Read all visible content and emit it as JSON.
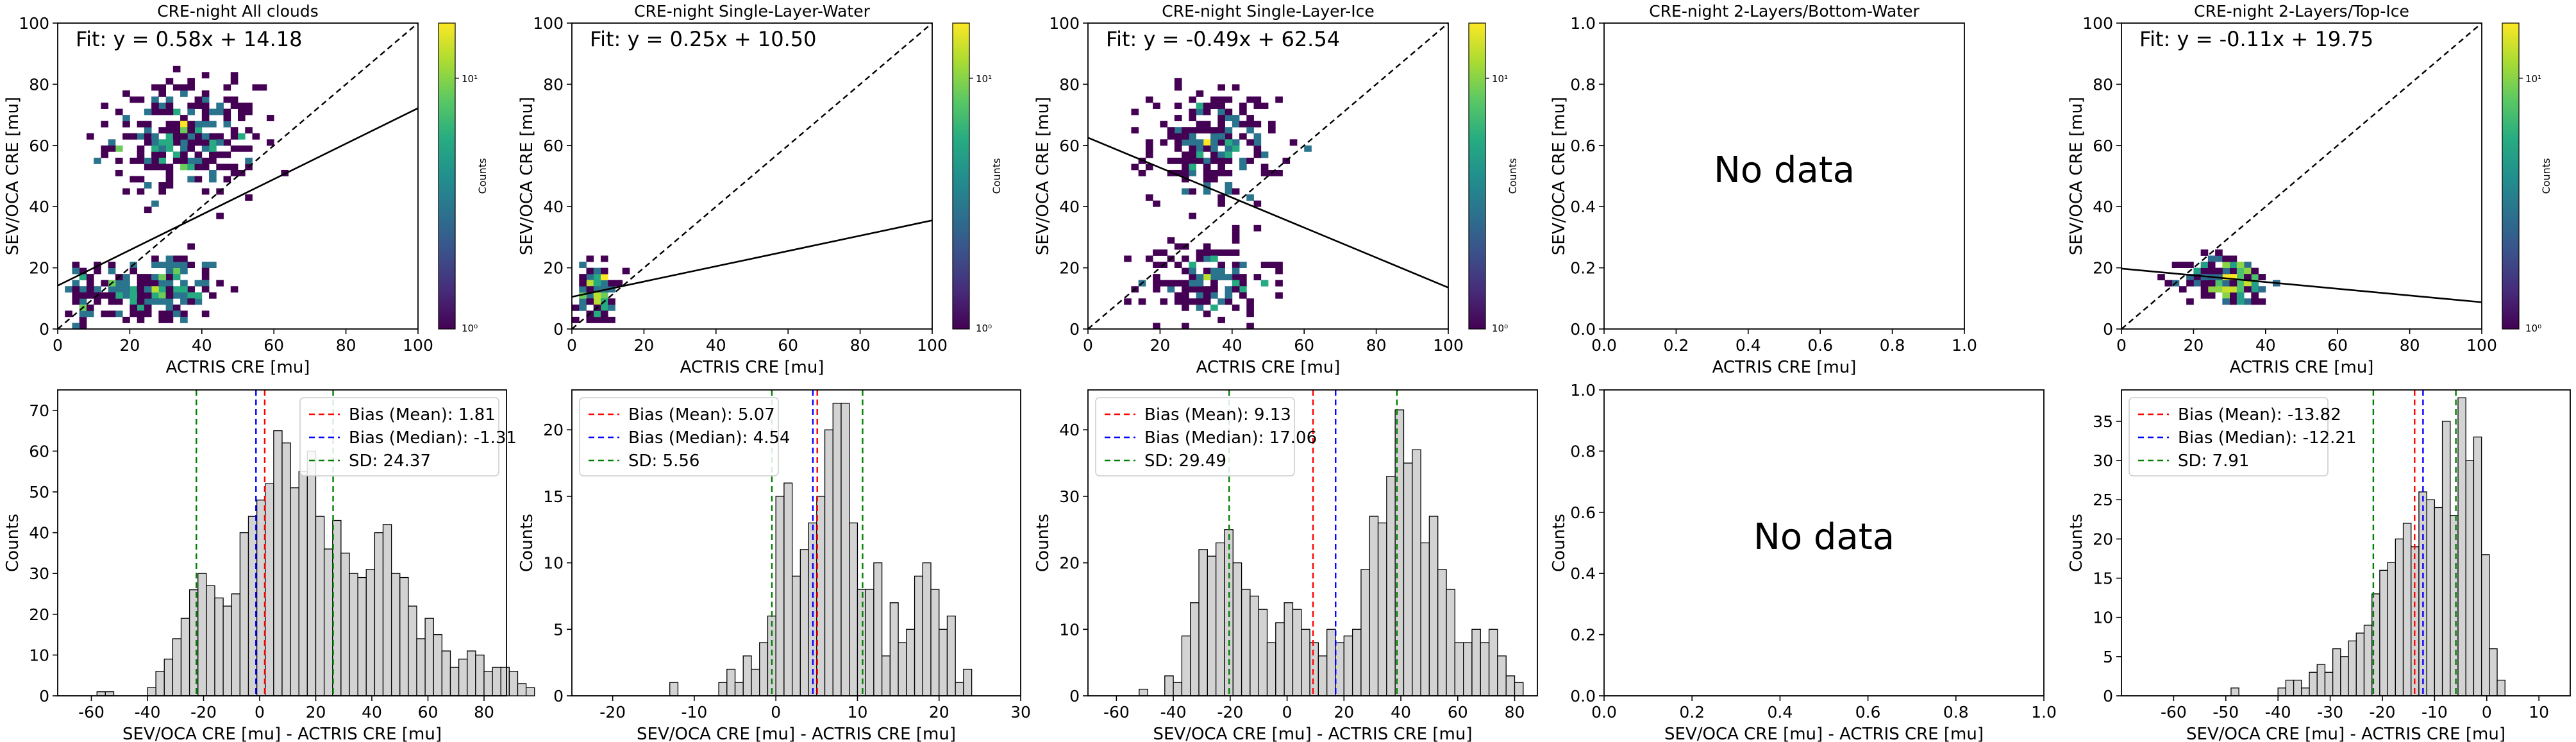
{
  "chart_data": [
    {
      "type": "heatmap",
      "title": "CRE-night All clouds",
      "xlabel": "ACTRIS CRE [mu]",
      "ylabel": "SEV/OCA CRE [mu]",
      "xlim": [
        0,
        100
      ],
      "ylim": [
        0,
        100
      ],
      "xticks": [
        "0",
        "20",
        "40",
        "60",
        "80",
        "100"
      ],
      "yticks": [
        "0",
        "20",
        "40",
        "60",
        "80",
        "100"
      ],
      "fit_text": "Fit: y = 0.58x + 14.18",
      "fit": {
        "slope": 0.58,
        "intercept": 14.18
      },
      "colorbar": {
        "label": "Counts",
        "ticks": [
          "10⁰",
          "10¹"
        ]
      },
      "clusters": [
        {
          "cx": 7,
          "cy": 10,
          "sx": 2.5,
          "sy": 7,
          "n": 40
        },
        {
          "cx": 28,
          "cy": 13,
          "sx": 9,
          "sy": 6,
          "n": 190
        },
        {
          "cx": 35,
          "cy": 62,
          "sx": 10,
          "sy": 9,
          "n": 260
        }
      ]
    },
    {
      "type": "heatmap",
      "title": "CRE-night Single-Layer-Water",
      "xlabel": "ACTRIS CRE [mu]",
      "ylabel": "SEV/OCA CRE [mu]",
      "xlim": [
        0,
        100
      ],
      "ylim": [
        0,
        100
      ],
      "xticks": [
        "0",
        "20",
        "40",
        "60",
        "80",
        "100"
      ],
      "yticks": [
        "0",
        "20",
        "40",
        "60",
        "80",
        "100"
      ],
      "fit_text": "Fit: y = 0.25x + 10.50",
      "fit": {
        "slope": 0.25,
        "intercept": 10.5
      },
      "colorbar": {
        "label": "Counts",
        "ticks": [
          "10⁰",
          "10¹"
        ]
      },
      "clusters": [
        {
          "cx": 7,
          "cy": 12,
          "sx": 2.5,
          "sy": 5,
          "n": 90
        }
      ]
    },
    {
      "type": "heatmap",
      "title": "CRE-night Single-Layer-Ice",
      "xlabel": "ACTRIS CRE [mu]",
      "ylabel": "SEV/OCA CRE [mu]",
      "xlim": [
        0,
        100
      ],
      "ylim": [
        0,
        100
      ],
      "xticks": [
        "0",
        "20",
        "40",
        "60",
        "80",
        "100"
      ],
      "yticks": [
        "0",
        "20",
        "40",
        "60",
        "80",
        "100"
      ],
      "fit_text": "Fit: y = -0.49x + 62.54",
      "fit": {
        "slope": -0.49,
        "intercept": 62.54
      },
      "colorbar": {
        "label": "Counts",
        "ticks": [
          "10⁰",
          "10¹"
        ]
      },
      "clusters": [
        {
          "cx": 35,
          "cy": 60,
          "sx": 9,
          "sy": 9,
          "n": 200
        },
        {
          "cx": 33,
          "cy": 16,
          "sx": 9,
          "sy": 7,
          "n": 140
        }
      ]
    },
    {
      "type": "heatmap",
      "title": "CRE-night 2-Layers/Bottom-Water",
      "xlabel": "ACTRIS CRE [mu]",
      "ylabel": "SEV/OCA CRE [mu]",
      "xlim": [
        0,
        1
      ],
      "ylim": [
        0,
        1
      ],
      "xticks": [
        "0.0",
        "0.2",
        "0.4",
        "0.6",
        "0.8",
        "1.0"
      ],
      "yticks": [
        "0.0",
        "0.2",
        "0.4",
        "0.6",
        "0.8",
        "1.0"
      ],
      "no_data_text": "No data"
    },
    {
      "type": "heatmap",
      "title": "CRE-night 2-Layers/Top-Ice",
      "xlabel": "ACTRIS CRE [mu]",
      "ylabel": "SEV/OCA CRE [mu]",
      "xlim": [
        0,
        100
      ],
      "ylim": [
        0,
        100
      ],
      "xticks": [
        "0",
        "20",
        "40",
        "60",
        "80",
        "100"
      ],
      "yticks": [
        "0",
        "20",
        "40",
        "60",
        "80",
        "100"
      ],
      "fit_text": "Fit: y = -0.11x + 19.75",
      "fit": {
        "slope": -0.11,
        "intercept": 19.75
      },
      "colorbar": {
        "label": "Counts",
        "ticks": [
          "10⁰",
          "10¹"
        ]
      },
      "clusters": [
        {
          "cx": 30,
          "cy": 16,
          "sx": 6,
          "sy": 4,
          "n": 170
        }
      ]
    },
    {
      "type": "bar",
      "xlabel": "SEV/OCA CRE [mu] - ACTRIS CRE [mu]",
      "ylabel": "Counts",
      "xlim": [
        -72,
        88
      ],
      "ylim": [
        0,
        75
      ],
      "xticks": [
        -60,
        -40,
        -20,
        0,
        20,
        40,
        60,
        80
      ],
      "yticks": [
        0,
        10,
        20,
        30,
        40,
        50,
        60,
        70
      ],
      "bins": {
        "start": -58,
        "width": 3,
        "values": [
          1,
          1,
          0,
          0,
          0,
          0,
          2,
          6,
          9,
          14,
          19,
          26,
          30,
          27,
          24,
          22,
          25,
          40,
          44,
          48,
          52,
          65,
          62,
          51,
          55,
          60,
          44,
          36,
          43,
          35,
          30,
          29,
          31,
          40,
          42,
          30,
          29,
          22,
          14,
          19,
          15,
          11,
          7,
          9,
          11,
          10,
          6,
          7,
          7,
          6,
          3,
          2
        ]
      },
      "lines": [
        {
          "value": 1.81,
          "color": "#ff0000"
        },
        {
          "value": -1.31,
          "color": "#0000ff"
        },
        {
          "value": -22.56,
          "color": "#008000"
        },
        {
          "value": 26.18,
          "color": "#008000"
        }
      ],
      "legend": [
        {
          "label": "Bias (Mean): 1.81",
          "color": "#ff0000"
        },
        {
          "label": "Bias (Median): -1.31",
          "color": "#0000ff"
        },
        {
          "label": "SD: 24.37",
          "color": "#008000"
        }
      ],
      "legend_position": "upper-right"
    },
    {
      "type": "bar",
      "xlabel": "SEV/OCA CRE [mu] - ACTRIS CRE [mu]",
      "ylabel": "Counts",
      "xlim": [
        -25,
        30
      ],
      "ylim": [
        0,
        23
      ],
      "xticks": [
        -20,
        -10,
        0,
        10,
        20,
        30
      ],
      "yticks": [
        0,
        5,
        10,
        15,
        20
      ],
      "bins": {
        "start": -13,
        "width": 1,
        "values": [
          1,
          0,
          0,
          0,
          0,
          0,
          1,
          2,
          1,
          3,
          2,
          4,
          6,
          15,
          16,
          9,
          11,
          13,
          15,
          20,
          22,
          22,
          13,
          8,
          8,
          10,
          3,
          7,
          4,
          5,
          9,
          10,
          8,
          5,
          6,
          1,
          2
        ]
      },
      "lines": [
        {
          "value": 5.07,
          "color": "#ff0000"
        },
        {
          "value": 4.54,
          "color": "#0000ff"
        },
        {
          "value": -0.49,
          "color": "#008000"
        },
        {
          "value": 10.63,
          "color": "#008000"
        }
      ],
      "legend": [
        {
          "label": "Bias (Mean): 5.07",
          "color": "#ff0000"
        },
        {
          "label": "Bias (Median): 4.54",
          "color": "#0000ff"
        },
        {
          "label": "SD: 5.56",
          "color": "#008000"
        }
      ],
      "legend_position": "upper-left"
    },
    {
      "type": "bar",
      "xlabel": "SEV/OCA CRE [mu] - ACTRIS CRE [mu]",
      "ylabel": "Counts",
      "xlim": [
        -70,
        88
      ],
      "ylim": [
        0,
        46
      ],
      "xticks": [
        -60,
        -40,
        -20,
        0,
        20,
        40,
        60,
        80
      ],
      "yticks": [
        0,
        10,
        20,
        30,
        40
      ],
      "bins": {
        "start": -52,
        "width": 3,
        "values": [
          1,
          0,
          0,
          3,
          2,
          9,
          14,
          22,
          21,
          23,
          25,
          20,
          16,
          15,
          13,
          8,
          11,
          14,
          13,
          10,
          8,
          6,
          10,
          8,
          9,
          10,
          19,
          27,
          26,
          33,
          43,
          35,
          37,
          23,
          27,
          19,
          16,
          8,
          8,
          10,
          8,
          10,
          6,
          3,
          2
        ]
      },
      "lines": [
        {
          "value": 9.13,
          "color": "#ff0000"
        },
        {
          "value": 17.06,
          "color": "#0000ff"
        },
        {
          "value": -20.36,
          "color": "#008000"
        },
        {
          "value": 38.62,
          "color": "#008000"
        }
      ],
      "legend": [
        {
          "label": "Bias (Mean): 9.13",
          "color": "#ff0000"
        },
        {
          "label": "Bias (Median): 17.06",
          "color": "#0000ff"
        },
        {
          "label": "SD: 29.49",
          "color": "#008000"
        }
      ],
      "legend_position": "upper-left"
    },
    {
      "type": "bar",
      "xlabel": "SEV/OCA CRE [mu] - ACTRIS CRE [mu]",
      "ylabel": "Counts",
      "xlim": [
        0,
        1
      ],
      "ylim": [
        0,
        1
      ],
      "xticks": [
        "0.0",
        "0.2",
        "0.4",
        "0.6",
        "0.8",
        "1.0"
      ],
      "yticks": [
        "0.0",
        "0.2",
        "0.4",
        "0.6",
        "0.8",
        "1.0"
      ],
      "no_data_text": "No data"
    },
    {
      "type": "bar",
      "xlabel": "SEV/OCA CRE [mu] - ACTRIS CRE [mu]",
      "ylabel": "Counts",
      "xlim": [
        -70,
        16
      ],
      "ylim": [
        0,
        39
      ],
      "xticks": [
        -60,
        -50,
        -40,
        -30,
        -20,
        -10,
        0,
        10
      ],
      "yticks": [
        0,
        5,
        10,
        15,
        20,
        25,
        30,
        35
      ],
      "bins": {
        "start": -49,
        "width": 1.5,
        "values": [
          1,
          0,
          0,
          0,
          0,
          0,
          1,
          2,
          2,
          1,
          3,
          4,
          3,
          6,
          5,
          7,
          8,
          9,
          13,
          16,
          17,
          20,
          22,
          19,
          26,
          25,
          24,
          35,
          23,
          38,
          30,
          33,
          18,
          6,
          2
        ]
      },
      "lines": [
        {
          "value": -13.82,
          "color": "#ff0000"
        },
        {
          "value": -12.21,
          "color": "#0000ff"
        },
        {
          "value": -21.73,
          "color": "#008000"
        },
        {
          "value": -5.91,
          "color": "#008000"
        }
      ],
      "legend": [
        {
          "label": "Bias (Mean): -13.82",
          "color": "#ff0000"
        },
        {
          "label": "Bias (Median): -12.21",
          "color": "#0000ff"
        },
        {
          "label": "SD: 7.91",
          "color": "#008000"
        }
      ],
      "legend_position": "upper-left"
    }
  ],
  "colors": {
    "hist_fill": "#d3d3d3",
    "hist_edge": "#000000",
    "viridis": [
      "#440154",
      "#472c7a",
      "#3b518b",
      "#2c718e",
      "#21908d",
      "#27ad81",
      "#5cc863",
      "#aadc32",
      "#fde725"
    ]
  }
}
